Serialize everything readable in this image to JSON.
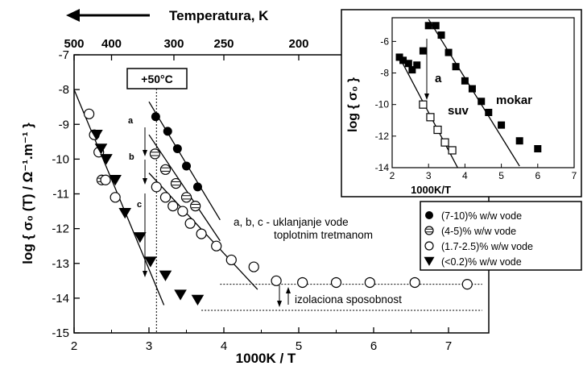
{
  "chart_data": [
    {
      "type": "scatter",
      "xlabel": "1000K / T",
      "ylabel": "log { σ₀ (T) / Ω⁻¹.m⁻¹ }",
      "xlim": [
        2,
        7.5
      ],
      "ylim": [
        -15,
        -7
      ],
      "x_ticks": [
        "2",
        "3",
        "4",
        "5",
        "6",
        "7"
      ],
      "y_ticks": [
        "-7",
        "-8",
        "-9",
        "-10",
        "-11",
        "-12",
        "-13",
        "-14",
        "-15"
      ],
      "top_axis": {
        "label": "Temperatura, K",
        "ticks": [
          {
            "text": "500",
            "x": 2.0
          },
          {
            "text": "400",
            "x": 2.5
          },
          {
            "text": "300",
            "x": 3.333
          },
          {
            "text": "250",
            "x": 4.0
          },
          {
            "text": "200",
            "x": 5.0
          }
        ]
      },
      "series": [
        {
          "name": "(7-10)% w/w vode",
          "marker": "filled-circle",
          "points": [
            [
              3.09,
              -8.78
            ],
            [
              3.25,
              -9.2
            ],
            [
              3.38,
              -9.7
            ],
            [
              3.5,
              -10.2
            ],
            [
              3.65,
              -10.8
            ]
          ],
          "fit": [
            [
              3.0,
              -8.35
            ],
            [
              3.95,
              -11.75
            ]
          ]
        },
        {
          "name": "(4-5)% w/w vode",
          "marker": "striped-circle",
          "points": [
            [
              2.37,
              -10.6
            ],
            [
              3.08,
              -9.85
            ],
            [
              3.22,
              -10.3
            ],
            [
              3.36,
              -10.7
            ],
            [
              3.5,
              -11.1
            ],
            [
              3.62,
              -11.35
            ]
          ],
          "fit": [
            [
              3.0,
              -9.3
            ],
            [
              3.95,
              -12.35
            ]
          ]
        },
        {
          "name": "(1.7-2.5)% w/w vode",
          "marker": "open-circle",
          "points": [
            [
              2.2,
              -8.7
            ],
            [
              2.27,
              -9.3
            ],
            [
              2.33,
              -9.8
            ],
            [
              2.42,
              -10.6
            ],
            [
              2.55,
              -11.1
            ],
            [
              3.1,
              -10.8
            ],
            [
              3.22,
              -11.1
            ],
            [
              3.32,
              -11.35
            ],
            [
              3.45,
              -11.5
            ],
            [
              3.55,
              -11.85
            ],
            [
              3.7,
              -12.15
            ],
            [
              3.9,
              -12.5
            ],
            [
              4.1,
              -12.9
            ],
            [
              4.4,
              -13.1
            ],
            [
              4.7,
              -13.5
            ],
            [
              5.05,
              -13.55
            ],
            [
              5.5,
              -13.55
            ],
            [
              5.95,
              -13.55
            ],
            [
              6.55,
              -13.55
            ],
            [
              7.25,
              -13.6
            ]
          ],
          "fit": [
            [
              3.0,
              -10.4
            ],
            [
              4.45,
              -13.75
            ]
          ],
          "plateau": -13.6
        },
        {
          "name": "(<0.2)% w/w vode",
          "marker": "filled-triangle",
          "points": [
            [
              2.3,
              -9.3
            ],
            [
              2.36,
              -9.7
            ],
            [
              2.43,
              -10.0
            ],
            [
              2.55,
              -10.6
            ],
            [
              2.68,
              -11.55
            ],
            [
              2.88,
              -12.25
            ],
            [
              3.02,
              -12.95
            ],
            [
              3.22,
              -13.35
            ],
            [
              3.42,
              -13.9
            ],
            [
              3.65,
              -14.05
            ]
          ],
          "fit": [
            [
              2.0,
              -8.0
            ],
            [
              3.2,
              -14.2
            ]
          ],
          "plateau": -14.35
        }
      ],
      "annotations": {
        "marker_box": "+50°C",
        "marker_x": 3.1,
        "arrow_letters": [
          "a",
          "b",
          "c"
        ],
        "water_removal_note": [
          "a, b, c - uklanjanje vode",
          "toplotnim tretmanom"
        ],
        "insulation_label": "izolaciona sposobnost"
      },
      "legend": {
        "placement": "right",
        "entries": [
          "(7-10)% w/w vode",
          "(4-5)% w/w vode",
          "(1.7-2.5)% w/w vode",
          "(<0.2)% w/w vode"
        ]
      }
    },
    {
      "type": "scatter",
      "placement": "top-right inset",
      "xlabel": "1000K/T",
      "ylabel": "log { σ₀ }",
      "xlim": [
        2,
        7
      ],
      "ylim": [
        -14,
        -4.5
      ],
      "x_ticks": [
        "2",
        "3",
        "4",
        "5",
        "6",
        "7"
      ],
      "y_ticks": [
        "-6",
        "-8",
        "-10",
        "-12",
        "-14"
      ],
      "series": [
        {
          "name": "mokar",
          "marker": "filled-square",
          "points": [
            [
              2.2,
              -7.0
            ],
            [
              2.3,
              -7.2
            ],
            [
              2.45,
              -7.4
            ],
            [
              2.55,
              -7.8
            ],
            [
              2.68,
              -7.5
            ],
            [
              2.85,
              -6.6
            ],
            [
              3.0,
              -5.0
            ],
            [
              3.2,
              -5.0
            ],
            [
              3.35,
              -5.6
            ],
            [
              3.55,
              -6.7
            ],
            [
              3.75,
              -7.6
            ],
            [
              4.0,
              -8.5
            ],
            [
              4.2,
              -9.0
            ],
            [
              4.45,
              -9.8
            ],
            [
              4.65,
              -10.5
            ],
            [
              5.0,
              -11.3
            ],
            [
              5.5,
              -12.3
            ],
            [
              6.0,
              -12.8
            ]
          ],
          "fit": [
            [
              3.0,
              -4.6
            ],
            [
              5.5,
              -13.9
            ]
          ]
        },
        {
          "name": "suv",
          "marker": "open-square",
          "points": [
            [
              2.85,
              -10.0
            ],
            [
              3.05,
              -10.8
            ],
            [
              3.25,
              -11.6
            ],
            [
              3.45,
              -12.4
            ],
            [
              3.65,
              -12.9
            ]
          ],
          "fit": [
            [
              2.2,
              -7.0
            ],
            [
              3.8,
              -14.0
            ]
          ]
        }
      ],
      "annotations": {
        "arrow_letter": "a",
        "labels": [
          "mokar",
          "suv"
        ]
      }
    }
  ]
}
